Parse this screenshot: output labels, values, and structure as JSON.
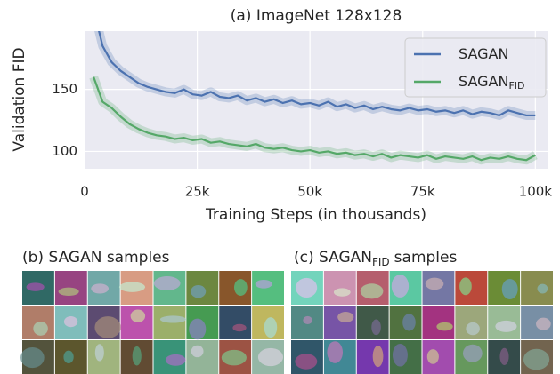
{
  "chart_data": {
    "type": "line",
    "title": "(a) ImageNet 128x128",
    "xlabel": "Training Steps (in thousands)",
    "ylabel": "Validation FID",
    "x": [
      2,
      4,
      6,
      8,
      10,
      12,
      14,
      16,
      18,
      20,
      22,
      24,
      26,
      28,
      30,
      32,
      34,
      36,
      38,
      40,
      42,
      44,
      46,
      48,
      50,
      52,
      54,
      56,
      58,
      60,
      62,
      64,
      66,
      68,
      70,
      72,
      74,
      76,
      78,
      80,
      82,
      84,
      86,
      88,
      90,
      92,
      94,
      96,
      98,
      100
    ],
    "series": [
      {
        "name": "SAGAN",
        "color": "#4c72b0",
        "values": [
          215,
          185,
          172,
          165,
          160,
          155,
          152,
          150,
          148,
          147,
          150,
          146,
          145,
          148,
          144,
          143,
          145,
          141,
          143,
          140,
          142,
          139,
          141,
          138,
          139,
          137,
          140,
          136,
          138,
          135,
          137,
          134,
          136,
          134,
          133,
          135,
          133,
          134,
          132,
          133,
          131,
          133,
          130,
          132,
          131,
          129,
          133,
          131,
          129,
          129
        ]
      },
      {
        "name": "SAGAN",
        "name_sub": "FID",
        "color": "#55a868",
        "values": [
          160,
          140,
          135,
          128,
          122,
          118,
          115,
          113,
          112,
          110,
          111,
          109,
          110,
          107,
          108,
          106,
          105,
          104,
          106,
          103,
          102,
          103,
          101,
          100,
          101,
          99,
          100,
          98,
          99,
          97,
          98,
          96,
          98,
          95,
          97,
          96,
          95,
          97,
          94,
          96,
          95,
          94,
          96,
          93,
          95,
          94,
          96,
          94,
          93,
          97
        ]
      }
    ],
    "xlim": [
      0,
      102.7
    ],
    "ylim": [
      86,
      197
    ],
    "xticks": [
      {
        "value": 0,
        "label": "0"
      },
      {
        "value": 25,
        "label": "25k"
      },
      {
        "value": 50,
        "label": "50k"
      },
      {
        "value": 75,
        "label": "75k"
      },
      {
        "value": 100,
        "label": "100k"
      }
    ],
    "yticks": [
      100,
      150
    ],
    "grid": true,
    "legend": "upper right"
  },
  "panels": [
    {
      "title": "(b) SAGAN samples"
    },
    {
      "title": "(c) SAGAN",
      "title_sub": "FID",
      "title_rest": "samples"
    }
  ]
}
